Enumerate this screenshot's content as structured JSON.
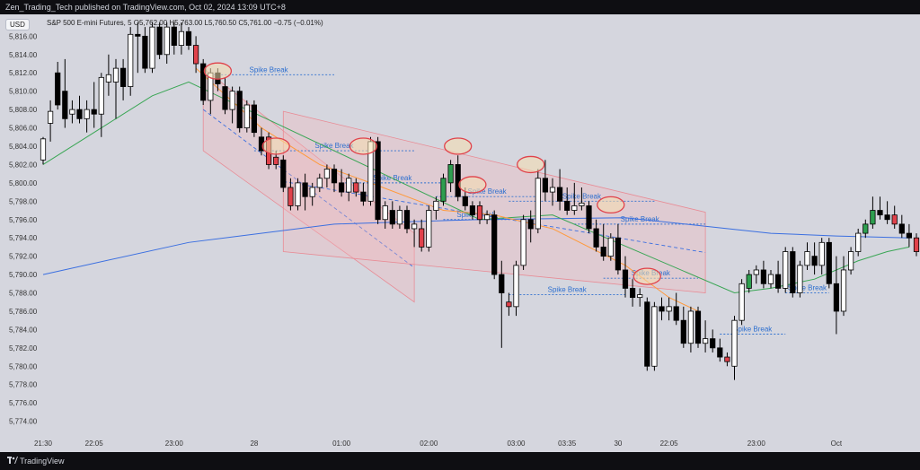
{
  "header": {
    "publisher_line": "Zen_Trading_Tech published on TradingView.com, Oct 02, 2024 13:09 UTC+8"
  },
  "currency_button": "USD",
  "legend": {
    "line": "S&P 500 E-mini Futures, 5 O5,762.00 H5,763.00 L5,760.50 C5,761.00 −0.75 (−0.01%)"
  },
  "footer": {
    "brand": "TradingView"
  },
  "colors": {
    "background": "#d5d6de",
    "bull_candle": "#ffffff",
    "bear_candle": "#000000",
    "signal_bull": "#2e9e4f",
    "signal_bear": "#e0424b",
    "ema_long": "#3b6fe0",
    "ema_mid": "#ff9a3c",
    "ema_short": "#3aa655",
    "channel_fill": "#f4b6bd",
    "annotation_text": "#2d6fcf"
  },
  "chart_data": {
    "type": "candlestick",
    "symbol": "S&P 500 E-mini Futures",
    "timeframe": "5",
    "y_ticks": [
      "5,816.00",
      "5,814.00",
      "5,812.00",
      "5,810.00",
      "5,808.00",
      "5,806.00",
      "5,804.00",
      "5,802.00",
      "5,800.00",
      "5,798.00",
      "5,796.00",
      "5,794.00",
      "5,792.00",
      "5,790.00",
      "5,788.00",
      "5,786.00",
      "5,784.00",
      "5,782.00",
      "5,780.00",
      "5,778.00",
      "5,776.00",
      "5,774.00"
    ],
    "ylim": [
      5772.2,
      5817.6
    ],
    "x_ticks": [
      {
        "label": "21:30",
        "i": 0
      },
      {
        "label": "22:05",
        "i": 7
      },
      {
        "label": "23:00",
        "i": 18
      },
      {
        "label": "28",
        "i": 29
      },
      {
        "label": "01:00",
        "i": 41
      },
      {
        "label": "02:00",
        "i": 53
      },
      {
        "label": "03:00",
        "i": 65
      },
      {
        "label": "03:35",
        "i": 72
      },
      {
        "label": "30",
        "i": 79
      },
      {
        "label": "22:05",
        "i": 86
      },
      {
        "label": "23:00",
        "i": 98
      },
      {
        "label": "Oct",
        "i": 109
      }
    ],
    "candles": [
      {
        "o": 5802.5,
        "h": 5805.0,
        "l": 5802.0,
        "c": 5804.8
      },
      {
        "o": 5806.5,
        "h": 5809.0,
        "l": 5804.5,
        "c": 5807.8
      },
      {
        "o": 5812.0,
        "h": 5813.2,
        "l": 5808.0,
        "c": 5808.5
      },
      {
        "o": 5810.0,
        "h": 5813.5,
        "l": 5806.0,
        "c": 5807.0
      },
      {
        "o": 5807.5,
        "h": 5809.0,
        "l": 5806.5,
        "c": 5808.0
      },
      {
        "o": 5808.0,
        "h": 5809.5,
        "l": 5806.5,
        "c": 5807.0
      },
      {
        "o": 5807.0,
        "h": 5809.0,
        "l": 5805.5,
        "c": 5808.0
      },
      {
        "o": 5808.0,
        "h": 5811.0,
        "l": 5806.0,
        "c": 5807.5
      },
      {
        "o": 5807.5,
        "h": 5812.0,
        "l": 5805.0,
        "c": 5811.5
      },
      {
        "o": 5811.0,
        "h": 5814.0,
        "l": 5809.5,
        "c": 5811.8
      },
      {
        "o": 5811.0,
        "h": 5813.5,
        "l": 5807.0,
        "c": 5812.5
      },
      {
        "o": 5812.5,
        "h": 5813.5,
        "l": 5809.0,
        "c": 5810.5
      },
      {
        "o": 5810.5,
        "h": 5817.0,
        "l": 5809.5,
        "c": 5816.2
      },
      {
        "o": 5816.2,
        "h": 5817.5,
        "l": 5812.0,
        "c": 5816.0
      },
      {
        "o": 5816.0,
        "h": 5817.0,
        "l": 5812.0,
        "c": 5812.5
      },
      {
        "o": 5812.5,
        "h": 5817.5,
        "l": 5812.0,
        "c": 5817.0
      },
      {
        "o": 5817.0,
        "h": 5817.5,
        "l": 5813.5,
        "c": 5814.0
      },
      {
        "o": 5814.0,
        "h": 5817.5,
        "l": 5813.0,
        "c": 5817.0
      },
      {
        "o": 5817.0,
        "h": 5817.5,
        "l": 5814.0,
        "c": 5815.0
      },
      {
        "o": 5815.0,
        "h": 5817.5,
        "l": 5814.0,
        "c": 5816.5
      },
      {
        "o": 5816.5,
        "h": 5817.0,
        "l": 5814.5,
        "c": 5815.0
      },
      {
        "o": 5815.0,
        "h": 5816.0,
        "l": 5812.0,
        "c": 5813.0,
        "s": "bear"
      },
      {
        "o": 5813.0,
        "h": 5813.5,
        "l": 5808.5,
        "c": 5809.0
      },
      {
        "o": 5809.0,
        "h": 5812.5,
        "l": 5807.5,
        "c": 5812.0
      },
      {
        "o": 5812.0,
        "h": 5812.5,
        "l": 5810.0,
        "c": 5810.8
      },
      {
        "o": 5810.5,
        "h": 5811.5,
        "l": 5807.5,
        "c": 5808.0
      },
      {
        "o": 5808.0,
        "h": 5810.5,
        "l": 5806.5,
        "c": 5810.0
      },
      {
        "o": 5810.0,
        "h": 5810.5,
        "l": 5805.5,
        "c": 5806.0
      },
      {
        "o": 5806.0,
        "h": 5809.0,
        "l": 5805.5,
        "c": 5808.5
      },
      {
        "o": 5808.5,
        "h": 5809.0,
        "l": 5805.0,
        "c": 5805.5
      },
      {
        "o": 5805.0,
        "h": 5806.0,
        "l": 5803.0,
        "c": 5803.5
      },
      {
        "o": 5805.0,
        "h": 5805.5,
        "l": 5801.5,
        "c": 5802.0,
        "s": "bear"
      },
      {
        "o": 5802.0,
        "h": 5803.5,
        "l": 5801.5,
        "c": 5802.8,
        "s": "bear"
      },
      {
        "o": 5802.5,
        "h": 5803.0,
        "l": 5799.0,
        "c": 5799.5
      },
      {
        "o": 5799.5,
        "h": 5800.5,
        "l": 5797.0,
        "c": 5797.5,
        "s": "bear"
      },
      {
        "o": 5797.5,
        "h": 5800.5,
        "l": 5797.0,
        "c": 5800.0
      },
      {
        "o": 5800.0,
        "h": 5801.0,
        "l": 5797.0,
        "c": 5798.5
      },
      {
        "o": 5798.5,
        "h": 5800.0,
        "l": 5797.5,
        "c": 5799.5
      },
      {
        "o": 5799.5,
        "h": 5801.0,
        "l": 5799.0,
        "c": 5800.5
      },
      {
        "o": 5800.5,
        "h": 5802.0,
        "l": 5799.5,
        "c": 5801.5
      },
      {
        "o": 5801.5,
        "h": 5802.0,
        "l": 5799.0,
        "c": 5800.0
      },
      {
        "o": 5800.0,
        "h": 5801.5,
        "l": 5798.5,
        "c": 5799.0
      },
      {
        "o": 5799.0,
        "h": 5801.0,
        "l": 5798.0,
        "c": 5800.5
      },
      {
        "o": 5800.0,
        "h": 5800.5,
        "l": 5798.5,
        "c": 5799.0,
        "s": "bear"
      },
      {
        "o": 5799.0,
        "h": 5800.0,
        "l": 5797.5,
        "c": 5798.0
      },
      {
        "o": 5798.0,
        "h": 5805.0,
        "l": 5797.5,
        "c": 5804.5
      },
      {
        "o": 5804.5,
        "h": 5805.0,
        "l": 5795.5,
        "c": 5796.0
      },
      {
        "o": 5796.0,
        "h": 5798.0,
        "l": 5795.0,
        "c": 5797.5
      },
      {
        "o": 5797.0,
        "h": 5798.0,
        "l": 5795.0,
        "c": 5795.5
      },
      {
        "o": 5795.5,
        "h": 5797.5,
        "l": 5795.0,
        "c": 5797.0
      },
      {
        "o": 5797.0,
        "h": 5797.5,
        "l": 5794.5,
        "c": 5795.0
      },
      {
        "o": 5795.0,
        "h": 5796.0,
        "l": 5793.0,
        "c": 5795.5
      },
      {
        "o": 5795.0,
        "h": 5796.0,
        "l": 5792.5,
        "c": 5793.0,
        "s": "bear"
      },
      {
        "o": 5793.0,
        "h": 5797.5,
        "l": 5792.5,
        "c": 5797.0
      },
      {
        "o": 5797.0,
        "h": 5798.5,
        "l": 5796.0,
        "c": 5798.0
      },
      {
        "o": 5798.0,
        "h": 5801.0,
        "l": 5797.5,
        "c": 5800.5,
        "s": "bull"
      },
      {
        "o": 5800.0,
        "h": 5802.5,
        "l": 5799.0,
        "c": 5802.0,
        "s": "bull"
      },
      {
        "o": 5802.0,
        "h": 5803.0,
        "l": 5798.0,
        "c": 5798.5
      },
      {
        "o": 5798.5,
        "h": 5799.5,
        "l": 5797.0,
        "c": 5797.5
      },
      {
        "o": 5797.5,
        "h": 5798.0,
        "l": 5796.0,
        "c": 5796.5
      },
      {
        "o": 5797.5,
        "h": 5798.0,
        "l": 5795.5,
        "c": 5796.0,
        "s": "bear"
      },
      {
        "o": 5796.0,
        "h": 5797.0,
        "l": 5795.5,
        "c": 5796.5
      },
      {
        "o": 5796.5,
        "h": 5797.0,
        "l": 5789.5,
        "c": 5790.0
      },
      {
        "o": 5790.0,
        "h": 5791.5,
        "l": 5782.0,
        "c": 5788.0
      },
      {
        "o": 5787.0,
        "h": 5788.0,
        "l": 5785.5,
        "c": 5786.5,
        "s": "bear"
      },
      {
        "o": 5786.5,
        "h": 5791.5,
        "l": 5785.5,
        "c": 5791.0
      },
      {
        "o": 5791.0,
        "h": 5796.5,
        "l": 5790.5,
        "c": 5796.0
      },
      {
        "o": 5796.0,
        "h": 5797.0,
        "l": 5793.5,
        "c": 5795.0
      },
      {
        "o": 5795.0,
        "h": 5801.5,
        "l": 5794.5,
        "c": 5800.5
      },
      {
        "o": 5800.5,
        "h": 5802.5,
        "l": 5798.0,
        "c": 5799.0
      },
      {
        "o": 5799.0,
        "h": 5800.5,
        "l": 5797.5,
        "c": 5799.5
      },
      {
        "o": 5799.5,
        "h": 5801.5,
        "l": 5797.0,
        "c": 5798.0
      },
      {
        "o": 5798.0,
        "h": 5799.5,
        "l": 5796.5,
        "c": 5797.0
      },
      {
        "o": 5797.0,
        "h": 5800.0,
        "l": 5796.5,
        "c": 5797.5
      },
      {
        "o": 5797.5,
        "h": 5799.5,
        "l": 5797.0,
        "c": 5797.8
      },
      {
        "o": 5797.5,
        "h": 5798.0,
        "l": 5794.5,
        "c": 5795.0
      },
      {
        "o": 5795.0,
        "h": 5796.0,
        "l": 5792.5,
        "c": 5793.0
      },
      {
        "o": 5793.0,
        "h": 5795.5,
        "l": 5791.5,
        "c": 5792.0
      },
      {
        "o": 5792.0,
        "h": 5794.5,
        "l": 5791.5,
        "c": 5794.0
      },
      {
        "o": 5794.0,
        "h": 5795.5,
        "l": 5790.0,
        "c": 5790.5
      },
      {
        "o": 5790.5,
        "h": 5792.0,
        "l": 5787.5,
        "c": 5788.5
      },
      {
        "o": 5788.5,
        "h": 5789.5,
        "l": 5786.5,
        "c": 5787.5
      },
      {
        "o": 5787.5,
        "h": 5788.5,
        "l": 5786.5,
        "c": 5787.8
      },
      {
        "o": 5787.0,
        "h": 5787.5,
        "l": 5779.5,
        "c": 5780.0
      },
      {
        "o": 5780.0,
        "h": 5787.0,
        "l": 5779.5,
        "c": 5786.5
      },
      {
        "o": 5786.5,
        "h": 5787.5,
        "l": 5785.0,
        "c": 5786.0
      },
      {
        "o": 5786.0,
        "h": 5787.5,
        "l": 5785.0,
        "c": 5786.5
      },
      {
        "o": 5786.5,
        "h": 5788.0,
        "l": 5784.5,
        "c": 5785.0
      },
      {
        "o": 5785.0,
        "h": 5786.5,
        "l": 5782.0,
        "c": 5782.5
      },
      {
        "o": 5782.5,
        "h": 5786.5,
        "l": 5781.5,
        "c": 5786.0
      },
      {
        "o": 5786.0,
        "h": 5786.5,
        "l": 5782.0,
        "c": 5782.5
      },
      {
        "o": 5782.5,
        "h": 5785.0,
        "l": 5781.5,
        "c": 5783.0
      },
      {
        "o": 5783.0,
        "h": 5784.0,
        "l": 5781.5,
        "c": 5782.0
      },
      {
        "o": 5782.0,
        "h": 5783.0,
        "l": 5780.5,
        "c": 5781.0
      },
      {
        "o": 5781.0,
        "h": 5781.5,
        "l": 5780.0,
        "c": 5780.5,
        "s": "bear"
      },
      {
        "o": 5780.0,
        "h": 5785.5,
        "l": 5778.5,
        "c": 5785.0
      },
      {
        "o": 5785.0,
        "h": 5789.5,
        "l": 5784.5,
        "c": 5789.0
      },
      {
        "o": 5788.5,
        "h": 5790.5,
        "l": 5788.0,
        "c": 5790.0,
        "s": "bull"
      },
      {
        "o": 5790.0,
        "h": 5791.0,
        "l": 5789.0,
        "c": 5790.5
      },
      {
        "o": 5790.5,
        "h": 5791.5,
        "l": 5788.5,
        "c": 5789.0
      },
      {
        "o": 5789.0,
        "h": 5790.5,
        "l": 5788.5,
        "c": 5790.0
      },
      {
        "o": 5790.0,
        "h": 5791.5,
        "l": 5788.0,
        "c": 5788.5
      },
      {
        "o": 5788.5,
        "h": 5793.0,
        "l": 5788.0,
        "c": 5792.5
      },
      {
        "o": 5792.5,
        "h": 5793.0,
        "l": 5787.5,
        "c": 5788.0
      },
      {
        "o": 5788.0,
        "h": 5791.5,
        "l": 5787.5,
        "c": 5791.0
      },
      {
        "o": 5791.0,
        "h": 5793.5,
        "l": 5790.5,
        "c": 5792.5
      },
      {
        "o": 5792.0,
        "h": 5793.5,
        "l": 5790.0,
        "c": 5791.0
      },
      {
        "o": 5791.0,
        "h": 5794.0,
        "l": 5790.0,
        "c": 5793.5
      },
      {
        "o": 5793.5,
        "h": 5794.0,
        "l": 5788.5,
        "c": 5789.0
      },
      {
        "o": 5789.0,
        "h": 5792.0,
        "l": 5783.5,
        "c": 5786.0
      },
      {
        "o": 5786.0,
        "h": 5792.0,
        "l": 5785.5,
        "c": 5790.5
      },
      {
        "o": 5790.5,
        "h": 5793.0,
        "l": 5790.0,
        "c": 5792.5
      },
      {
        "o": 5792.5,
        "h": 5795.0,
        "l": 5792.0,
        "c": 5794.5
      },
      {
        "o": 5794.5,
        "h": 5796.0,
        "l": 5794.0,
        "c": 5795.5,
        "s": "bull"
      },
      {
        "o": 5795.5,
        "h": 5798.5,
        "l": 5795.0,
        "c": 5797.0,
        "s": "bull"
      },
      {
        "o": 5797.0,
        "h": 5798.5,
        "l": 5796.0,
        "c": 5796.5
      },
      {
        "o": 5796.5,
        "h": 5798.0,
        "l": 5795.5,
        "c": 5796.0
      },
      {
        "o": 5796.5,
        "h": 5797.5,
        "l": 5795.0,
        "c": 5795.5,
        "s": "bear"
      },
      {
        "o": 5795.5,
        "h": 5796.5,
        "l": 5794.0,
        "c": 5794.5
      },
      {
        "o": 5794.5,
        "h": 5795.5,
        "l": 5793.0,
        "c": 5794.0
      },
      {
        "o": 5794.0,
        "h": 5794.5,
        "l": 5792.0,
        "c": 5792.5,
        "s": "bear"
      },
      {
        "o": 5792.5,
        "h": 5794.5,
        "l": 5792.0,
        "c": 5794.0
      },
      {
        "o": 5794.0,
        "h": 5794.5,
        "l": 5791.5,
        "c": 5792.0
      },
      {
        "o": 5792.0,
        "h": 5793.5,
        "l": 5791.5,
        "c": 5793.0
      }
    ],
    "ma_series": [
      {
        "color": "#3b6fe0",
        "points": [
          [
            0,
            5790.0
          ],
          [
            20,
            5793.5
          ],
          [
            40,
            5795.5
          ],
          [
            60,
            5796.0
          ],
          [
            80,
            5796.2
          ],
          [
            100,
            5794.5
          ],
          [
            109,
            5794.2
          ],
          [
            119,
            5794.0
          ]
        ]
      },
      {
        "color": "#3aa655",
        "points": [
          [
            0,
            5802.0
          ],
          [
            8,
            5806.0
          ],
          [
            15,
            5809.5
          ],
          [
            20,
            5811.0
          ],
          [
            60,
            5796.0
          ],
          [
            70,
            5796.5
          ],
          [
            95,
            5788.0
          ],
          [
            100,
            5788.5
          ],
          [
            106,
            5789.5
          ],
          [
            112,
            5791.5
          ],
          [
            116,
            5792.5
          ],
          [
            119,
            5793.0
          ]
        ]
      },
      {
        "color": "#ff9a3c",
        "points": [
          [
            21,
            5812.5
          ],
          [
            30,
            5806.0
          ],
          [
            38,
            5802.0
          ],
          [
            45,
            5800.0
          ],
          [
            55,
            5797.0
          ],
          [
            62,
            5796.5
          ],
          [
            70,
            5795.0
          ],
          [
            80,
            5791.0
          ],
          [
            86,
            5787.5
          ],
          [
            90,
            5786.0
          ]
        ]
      }
    ],
    "spike_breaks": [
      {
        "label": "Spike Break",
        "start": 22,
        "end": 40,
        "y": 5811.8
      },
      {
        "label": "Spike Break",
        "start": 29,
        "end": 51,
        "y": 5803.5
      },
      {
        "label": "Spike Break",
        "start": 41,
        "end": 55,
        "y": 5800.0
      },
      {
        "label": "Spike Break",
        "start": 54,
        "end": 68,
        "y": 5798.5
      },
      {
        "label": "Spike Break",
        "start": 55,
        "end": 64,
        "y": 5796.0
      },
      {
        "label": "Spike Break",
        "start": 64,
        "end": 84,
        "y": 5798.0
      },
      {
        "label": "Spike Break",
        "start": 73,
        "end": 91,
        "y": 5795.5
      },
      {
        "label": "Spike Break",
        "start": 64,
        "end": 80,
        "y": 5787.8
      },
      {
        "label": "Spike Break",
        "start": 77,
        "end": 90,
        "y": 5789.6
      },
      {
        "label": "Spike Break",
        "start": 93,
        "end": 102,
        "y": 5783.5
      },
      {
        "label": "Spike Break",
        "start": 102,
        "end": 108,
        "y": 5788.0
      }
    ],
    "spike_circles": [
      {
        "i": 24,
        "y": 5812.2
      },
      {
        "i": 32,
        "y": 5804.0
      },
      {
        "i": 44,
        "y": 5804.0
      },
      {
        "i": 57,
        "y": 5804.0
      },
      {
        "i": 59,
        "y": 5799.8
      },
      {
        "i": 67,
        "y": 5802.0
      },
      {
        "i": 78,
        "y": 5797.6
      },
      {
        "i": 83,
        "y": 5789.8
      }
    ],
    "channels": [
      {
        "x1": 22,
        "x2": 51,
        "top": [
          5812.5,
          5794.5
        ],
        "bottom": [
          5803.5,
          5787.0
        ]
      },
      {
        "x1": 33,
        "x2": 91,
        "top": [
          5807.8,
          5796.8
        ],
        "bottom": [
          5792.5,
          5788.0
        ]
      }
    ]
  }
}
